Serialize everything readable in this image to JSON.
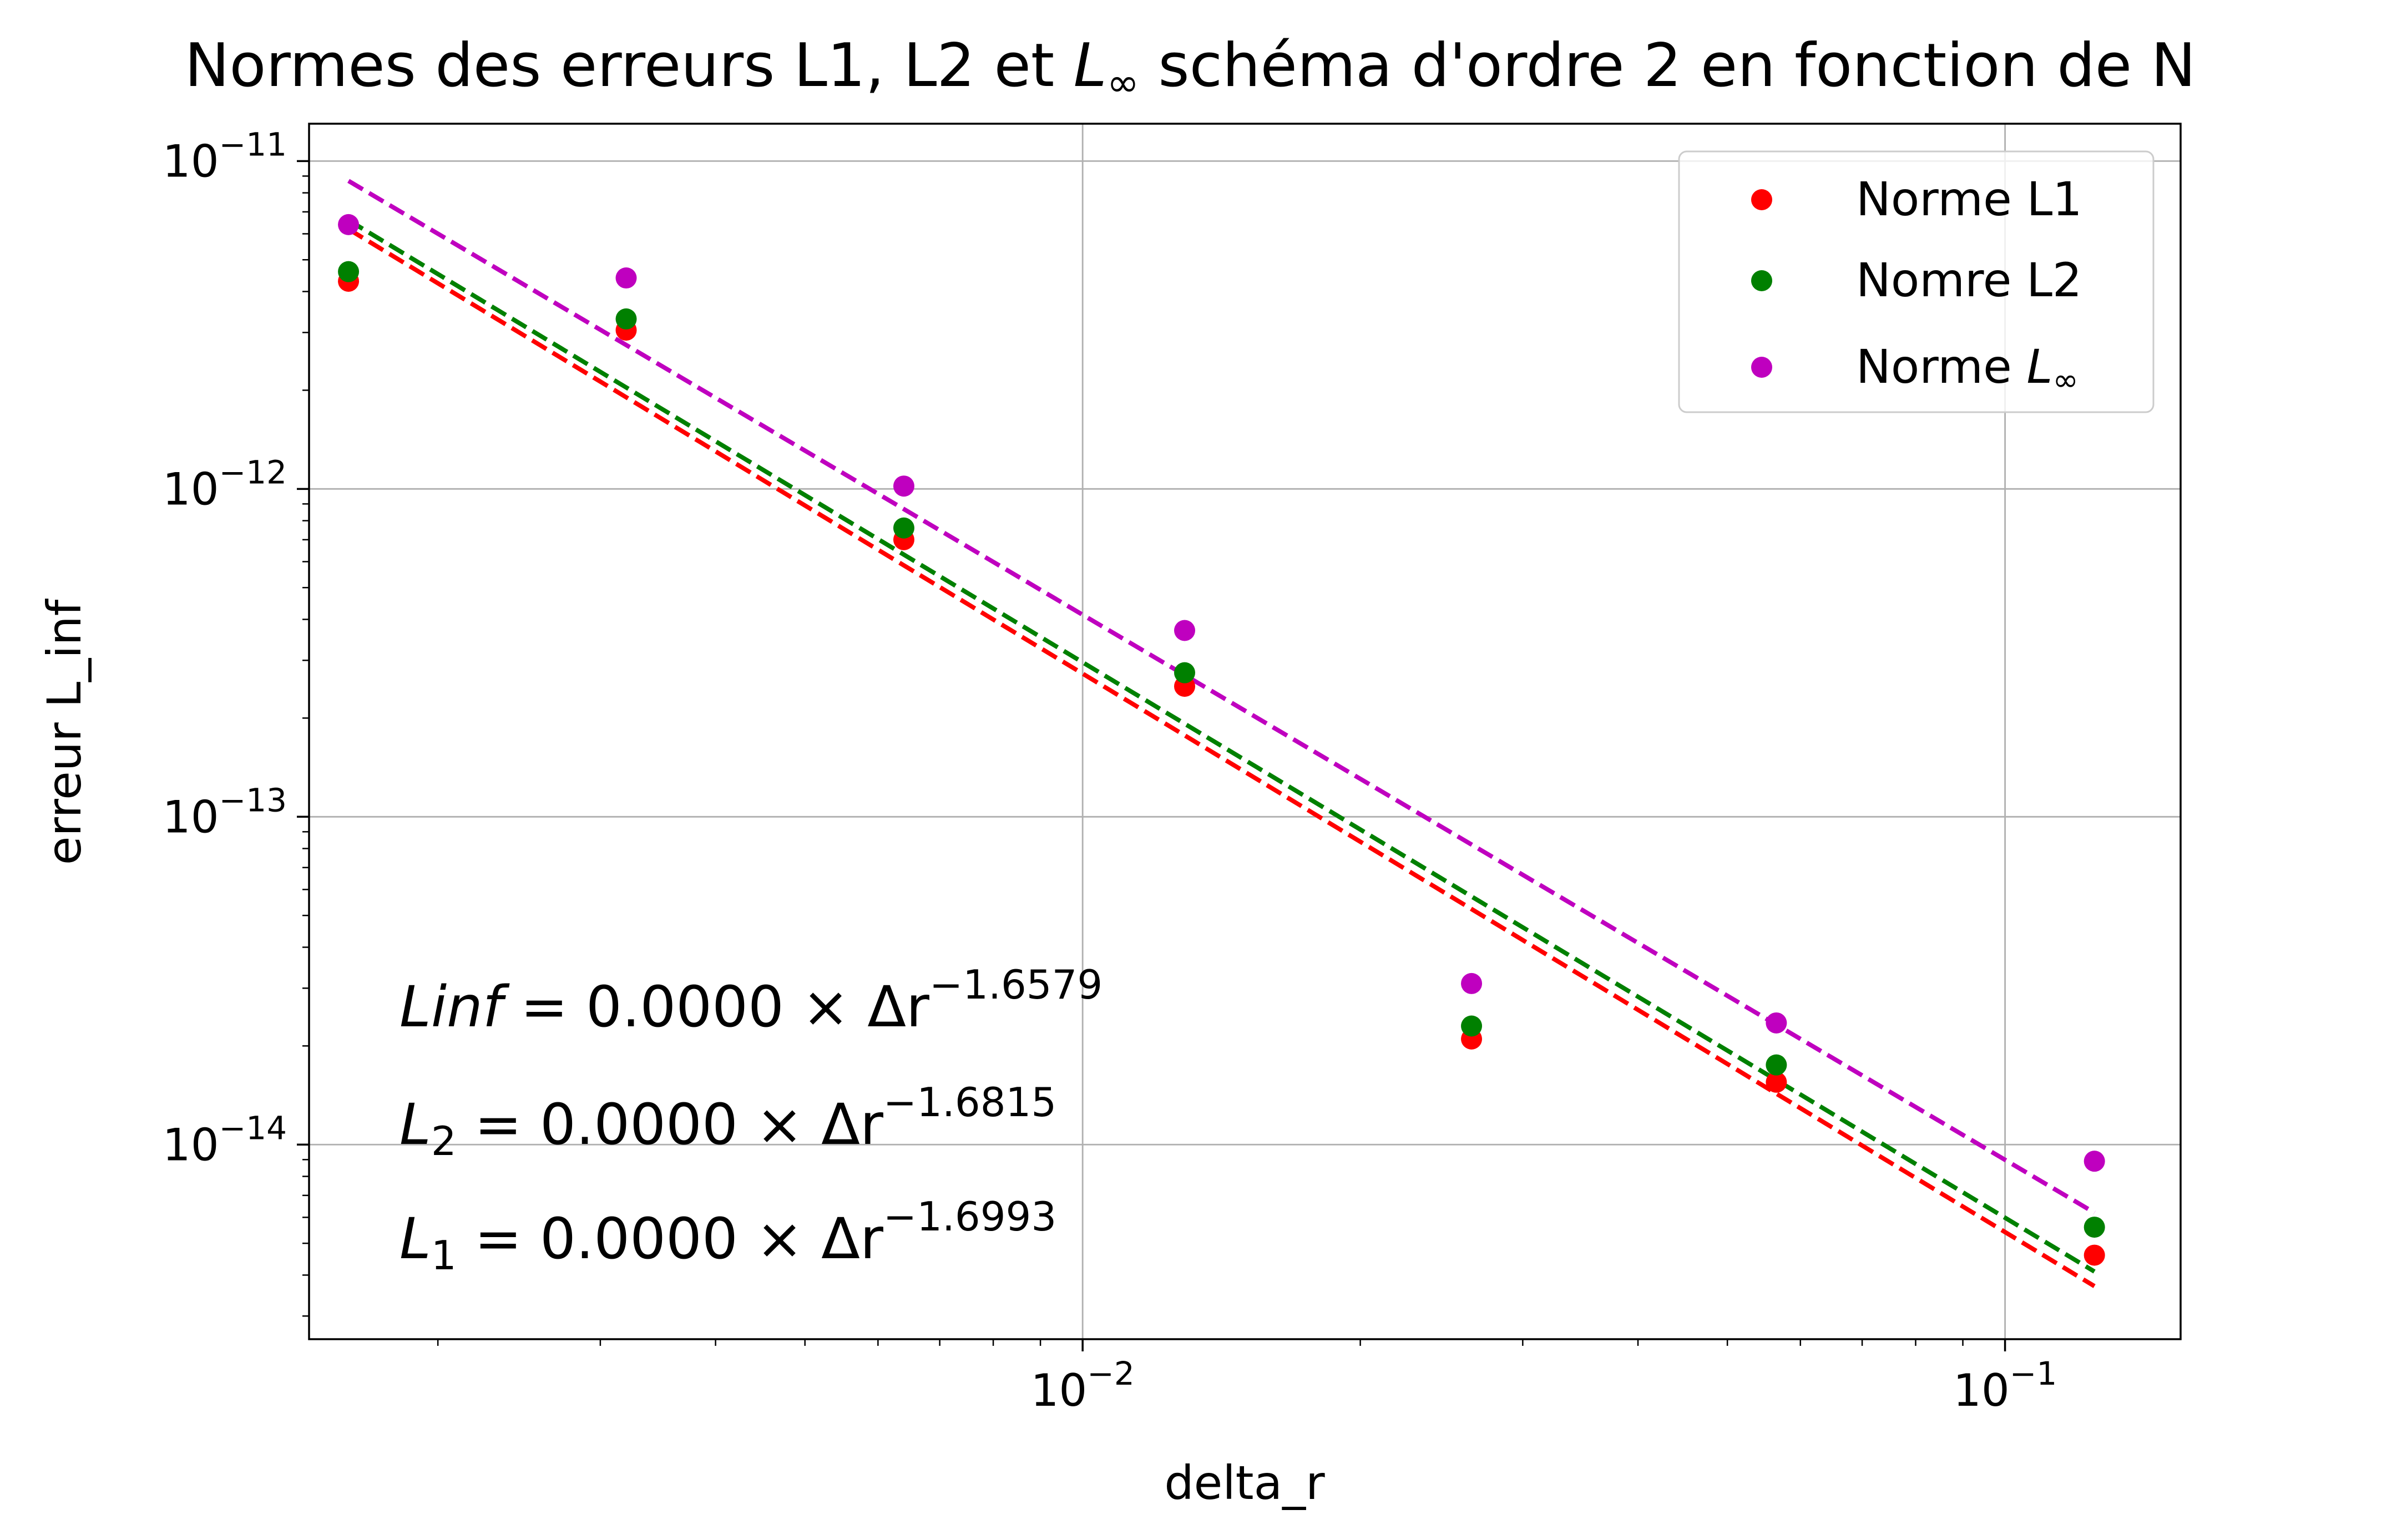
{
  "chart_data": {
    "type": "scatter",
    "title": "Normes des erreurs L1, L2 et L∞ schéma d'ordre 2 en fonction de N",
    "xlabel": "delta_r",
    "ylabel": "erreur L_inf",
    "xscale": "log",
    "yscale": "log",
    "xlim": [
      0.00145,
      0.155
    ],
    "ylim": [
      2.55e-15,
      1.3e-11
    ],
    "grid": true,
    "legend_position": "upper right",
    "x_ticks": [
      {
        "value": 0.01,
        "base": "10",
        "exp": "−2"
      },
      {
        "value": 0.1,
        "base": "10",
        "exp": "−1"
      }
    ],
    "y_ticks": [
      {
        "value": 1e-11,
        "base": "10",
        "exp": "−11"
      },
      {
        "value": 1e-12,
        "base": "10",
        "exp": "−12"
      },
      {
        "value": 1e-13,
        "base": "10",
        "exp": "−13"
      },
      {
        "value": 1e-14,
        "base": "10",
        "exp": "−14"
      }
    ],
    "x": [
      0.0016,
      0.0032,
      0.0064,
      0.0129,
      0.0264,
      0.0565,
      0.125
    ],
    "series": [
      {
        "name": "Norme L1",
        "color": "#ff0000",
        "values": [
          4.3e-12,
          3.05e-12,
          7e-13,
          2.5e-13,
          2.1e-14,
          1.55e-14,
          4.6e-15
        ],
        "fit": {
          "start": [
            0.0016,
            6.2e-12
          ],
          "end": [
            0.125,
            3.7e-15
          ]
        }
      },
      {
        "name": "Nomre L2",
        "color": "#008000",
        "values": [
          4.6e-12,
          3.3e-12,
          7.6e-13,
          2.75e-13,
          2.3e-14,
          1.75e-14,
          5.6e-15
        ],
        "fit": {
          "start": [
            0.0016,
            6.6e-12
          ],
          "end": [
            0.125,
            4.1e-15
          ]
        }
      },
      {
        "name": "Norme L∞",
        "name_parts": [
          "Norme ",
          "L",
          "∞"
        ],
        "color": "#bf00bf",
        "values": [
          6.4e-12,
          4.4e-12,
          1.02e-12,
          3.7e-13,
          3.1e-14,
          2.35e-14,
          8.9e-15
        ],
        "fit": {
          "start": [
            0.0016,
            8.7e-12
          ],
          "end": [
            0.125,
            6.2e-15
          ]
        }
      }
    ],
    "annotations": [
      {
        "name": "Linf",
        "sub": "",
        "text": " = 0.0000 × Δr",
        "exp": "−1.6579"
      },
      {
        "name": "L",
        "sub": "2",
        "text": " = 0.0000 × Δr",
        "exp": "−1.6815"
      },
      {
        "name": "L",
        "sub": "1",
        "text": " = 0.0000 × Δr",
        "exp": "−1.6993"
      }
    ]
  }
}
